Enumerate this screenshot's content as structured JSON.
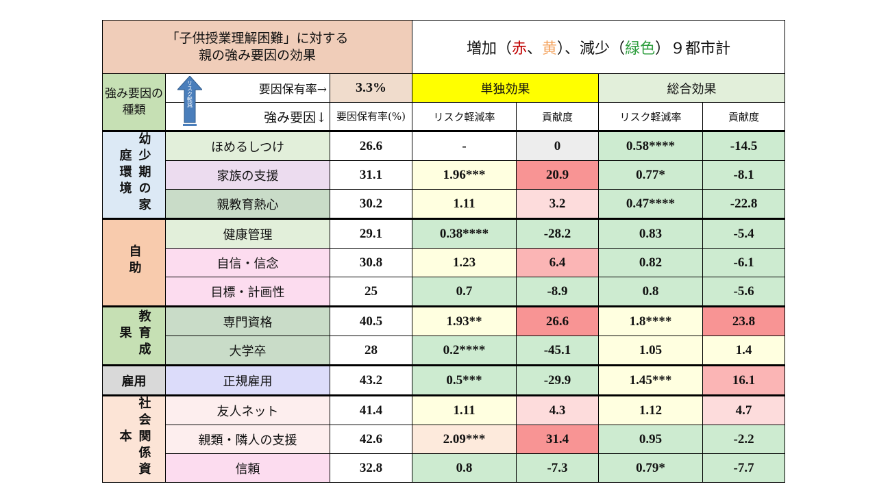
{
  "title": {
    "line1": "「子供授業理解困難」に対する",
    "line2": "親の強み要因の効果",
    "right_parts": [
      {
        "text": "増加（",
        "color": "#111111"
      },
      {
        "text": "赤",
        "color": "#c00000"
      },
      {
        "text": "、",
        "color": "#111111"
      },
      {
        "text": "黄",
        "color": "#f4a460"
      },
      {
        "text": "）、減少（",
        "color": "#111111"
      },
      {
        "text": "緑色",
        "color": "#2e9e3e"
      },
      {
        "text": "）９都市計",
        "color": "#111111"
      }
    ]
  },
  "header": {
    "category_label": "強み要因の種類",
    "arrow_label": "リスク軽減",
    "prevalence_arrow_label": "要因保有率→",
    "overall_prevalence": "3.3%",
    "factor_arrow_label": "強み要因↓",
    "prevalence_col": "要因保有率(%)",
    "single_effect": "単独効果",
    "total_effect": "総合効果",
    "risk_reduction": "リスク軽減率",
    "contribution": "貢献度"
  },
  "groups": [
    {
      "label": "幼少期の家庭環境",
      "bg": "#dce9f5",
      "rows": [
        {
          "factor": "ほめるしつけ",
          "fbg": "#e2efda",
          "prev": "26.6",
          "s_rr": "-",
          "s_rr_bg": "#ffffff",
          "s_c": "0",
          "s_c_bg": "#ededed",
          "t_rr": "0.58****",
          "t_rr_bg": "#cdebd0",
          "t_c": "-14.5",
          "t_c_bg": "#cdebd0"
        },
        {
          "factor": "家族の支援",
          "fbg": "#ecdcef",
          "prev": "31.1",
          "s_rr": "1.96***",
          "s_rr_bg": "#ffffe0",
          "s_c": "20.9",
          "s_c_bg": "#f89494",
          "t_rr": "0.77*",
          "t_rr_bg": "#cdebd0",
          "t_c": "-8.1",
          "t_c_bg": "#cdebd0"
        },
        {
          "factor": "親教育熱心",
          "fbg": "#c9dcc8",
          "prev": "30.2",
          "s_rr": "1.11",
          "s_rr_bg": "#ffffe0",
          "s_c": "3.2",
          "s_c_bg": "#fddcdc",
          "t_rr": "0.47****",
          "t_rr_bg": "#cdebd0",
          "t_c": "-22.8",
          "t_c_bg": "#cdebd0"
        }
      ]
    },
    {
      "label": "自助",
      "bg": "#f8cbad",
      "rows": [
        {
          "factor": "健康管理",
          "fbg": "#e2efda",
          "prev": "29.1",
          "s_rr": "0.38****",
          "s_rr_bg": "#cdebd0",
          "s_c": "-28.2",
          "s_c_bg": "#cdebd0",
          "t_rr": "0.83",
          "t_rr_bg": "#cdebd0",
          "t_c": "-5.4",
          "t_c_bg": "#cdebd0"
        },
        {
          "factor": "自信・信念",
          "fbg": "#fcdcef",
          "prev": "30.8",
          "s_rr": "1.23",
          "s_rr_bg": "#ffffe0",
          "s_c": "6.4",
          "s_c_bg": "#fbb5b5",
          "t_rr": "0.82",
          "t_rr_bg": "#cdebd0",
          "t_c": "-6.1",
          "t_c_bg": "#cdebd0"
        },
        {
          "factor": "目標・計画性",
          "fbg": "#fcdcef",
          "prev": "25",
          "s_rr": "0.7",
          "s_rr_bg": "#cdebd0",
          "s_c": "-8.9",
          "s_c_bg": "#cdebd0",
          "t_rr": "0.8",
          "t_rr_bg": "#cdebd0",
          "t_c": "-5.6",
          "t_c_bg": "#cdebd0"
        }
      ]
    },
    {
      "label": "教育成果",
      "bg": "#c6e0b4",
      "rows": [
        {
          "factor": "専門資格",
          "fbg": "#c9dcc8",
          "prev": "40.5",
          "s_rr": "1.93**",
          "s_rr_bg": "#ffffe0",
          "s_c": "26.6",
          "s_c_bg": "#f89494",
          "t_rr": "1.8****",
          "t_rr_bg": "#ffffe0",
          "t_c": "23.8",
          "t_c_bg": "#f89494"
        },
        {
          "factor": "大学卒",
          "fbg": "#c9dcc8",
          "prev": "28",
          "s_rr": "0.2****",
          "s_rr_bg": "#cdebd0",
          "s_c": "-45.1",
          "s_c_bg": "#cdebd0",
          "t_rr": "1.05",
          "t_rr_bg": "#ffffe0",
          "t_c": "1.4",
          "t_c_bg": "#ffffe0"
        }
      ]
    },
    {
      "label": "雇用",
      "bg": "#d9d9d9",
      "rows": [
        {
          "factor": "正規雇用",
          "fbg": "#dcdcfa",
          "prev": "43.2",
          "s_rr": "0.5***",
          "s_rr_bg": "#cdebd0",
          "s_c": "-29.9",
          "s_c_bg": "#cdebd0",
          "t_rr": "1.45***",
          "t_rr_bg": "#ffffe0",
          "t_c": "16.1",
          "t_c_bg": "#fbb5b5"
        }
      ]
    },
    {
      "label": "社会関係資本",
      "bg": "#fce4d6",
      "rows": [
        {
          "factor": "友人ネット",
          "fbg": "#fdeeee",
          "prev": "41.4",
          "s_rr": "1.11",
          "s_rr_bg": "#ffffe0",
          "s_c": "4.3",
          "s_c_bg": "#fddcdc",
          "t_rr": "1.12",
          "t_rr_bg": "#ffffe0",
          "t_c": "4.7",
          "t_c_bg": "#fddcdc"
        },
        {
          "factor": "親類・隣人の支援",
          "fbg": "#fdeeee",
          "prev": "42.6",
          "s_rr": "2.09***",
          "s_rr_bg": "#fdeadc",
          "s_c": "31.4",
          "s_c_bg": "#f89494",
          "t_rr": "0.95",
          "t_rr_bg": "#cdebd0",
          "t_c": "-2.2",
          "t_c_bg": "#cdebd0"
        },
        {
          "factor": "信頼",
          "fbg": "#fcdcef",
          "prev": "32.8",
          "s_rr": "0.8",
          "s_rr_bg": "#cdebd0",
          "s_c": "-7.3",
          "s_c_bg": "#cdebd0",
          "t_rr": "0.79*",
          "t_rr_bg": "#cdebd0",
          "t_c": "-7.7",
          "t_c_bg": "#cdebd0"
        }
      ]
    }
  ],
  "colors": {
    "single_header": "#ffff00",
    "total_header": "#e2efda",
    "prevalence_header": "#f0dccc",
    "category_header": "#c6e0b4",
    "arrow": "#4a7ebb"
  }
}
